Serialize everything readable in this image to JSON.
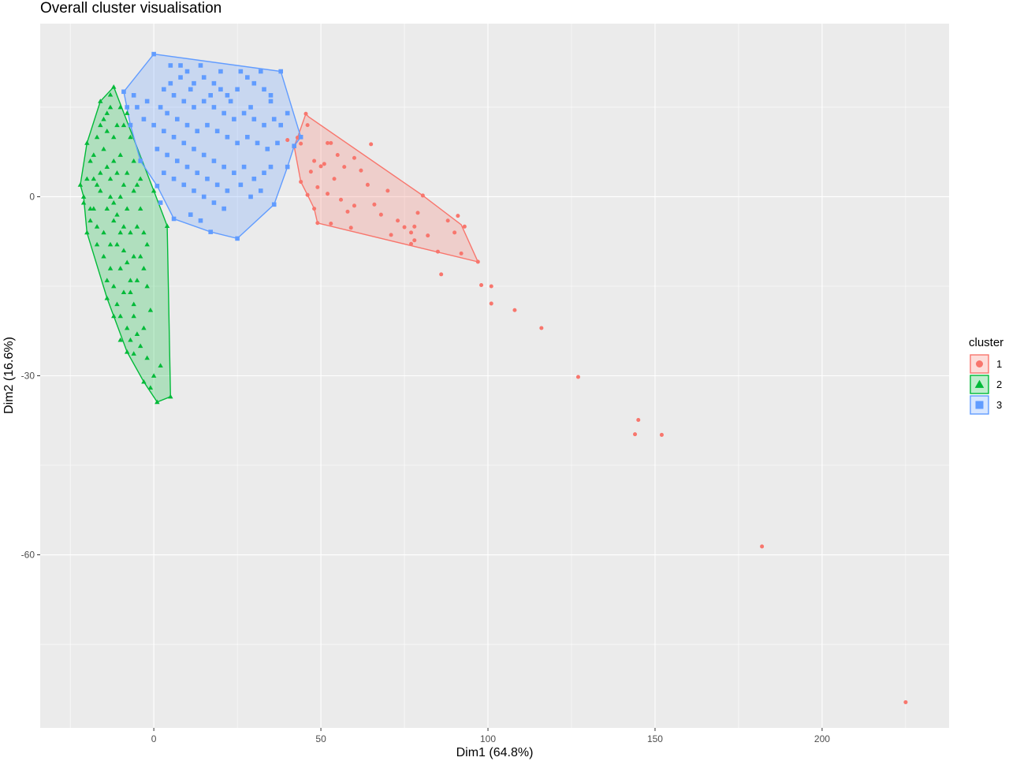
{
  "chart_data": {
    "type": "scatter",
    "title": "Overall cluster visualisation",
    "xlabel": "Dim1 (64.8%)",
    "ylabel": "Dim2 (16.6%)",
    "xlim": [
      -34,
      238
    ],
    "ylim": [
      -89,
      29
    ],
    "xticks": [
      0,
      50,
      100,
      150,
      200
    ],
    "yticks": [
      0,
      -30,
      -60
    ],
    "grid": true,
    "legend": {
      "title": "cluster",
      "placement": "right"
    },
    "series": [
      {
        "name": "1",
        "color": "#F8766D",
        "shape": "circle",
        "hull": [
          [
            45.5,
            13.9
          ],
          [
            43,
            9.9
          ],
          [
            42,
            8.4
          ],
          [
            44,
            2.5
          ],
          [
            46,
            0.3
          ],
          [
            48,
            -2
          ],
          [
            49,
            -4.4
          ],
          [
            97,
            -10.9
          ],
          [
            92,
            -4.7
          ],
          [
            80.5,
            0.2
          ],
          [
            46.3,
            13.4
          ]
        ],
        "points": [
          [
            45.5,
            13.9
          ],
          [
            46,
            12
          ],
          [
            43,
            9.9
          ],
          [
            42,
            8.4
          ],
          [
            44,
            2.5
          ],
          [
            46,
            0.3
          ],
          [
            48,
            -2
          ],
          [
            49,
            -4.4
          ],
          [
            52,
            9
          ],
          [
            53,
            9
          ],
          [
            48,
            6
          ],
          [
            50,
            5.1
          ],
          [
            47,
            4.2
          ],
          [
            51,
            5.5
          ],
          [
            55,
            7
          ],
          [
            57,
            5
          ],
          [
            54,
            3
          ],
          [
            49,
            1.6
          ],
          [
            52,
            0.5
          ],
          [
            56,
            -0.5
          ],
          [
            60,
            -1.5
          ],
          [
            58,
            -2.5
          ],
          [
            53,
            -4.5
          ],
          [
            59,
            -5.2
          ],
          [
            62,
            4.4
          ],
          [
            64,
            2
          ],
          [
            66,
            -1.3
          ],
          [
            70,
            1
          ],
          [
            68,
            -3
          ],
          [
            73,
            -4
          ],
          [
            71,
            -6.4
          ],
          [
            75,
            -5.1
          ],
          [
            77,
            -6
          ],
          [
            78,
            -7.3
          ],
          [
            78,
            -5
          ],
          [
            77,
            -7.9
          ],
          [
            79,
            -2.7
          ],
          [
            80.5,
            0.2
          ],
          [
            82,
            -6.5
          ],
          [
            85,
            -9.2
          ],
          [
            86,
            -13
          ],
          [
            88,
            -4
          ],
          [
            91,
            -3.2
          ],
          [
            93,
            -5
          ],
          [
            90,
            -6
          ],
          [
            92,
            -9.5
          ],
          [
            97,
            -10.9
          ],
          [
            98,
            -14.8
          ],
          [
            101,
            -15
          ],
          [
            101,
            -17.9
          ],
          [
            108,
            -19
          ],
          [
            116,
            -22
          ],
          [
            127,
            -30.2
          ],
          [
            145,
            -37.4
          ],
          [
            144,
            -39.8
          ],
          [
            152,
            -39.9
          ],
          [
            182,
            -58.6
          ],
          [
            225,
            -84.7
          ],
          [
            60,
            6.5
          ],
          [
            65,
            8.8
          ],
          [
            44,
            8.9
          ],
          [
            40,
            9.5
          ]
        ]
      },
      {
        "name": "2",
        "color": "#00BA38",
        "shape": "triangle",
        "hull": [
          [
            -12,
            18.4
          ],
          [
            -16,
            16
          ],
          [
            -20,
            9
          ],
          [
            -22,
            2
          ],
          [
            -21,
            0
          ],
          [
            -20,
            -6
          ],
          [
            -14,
            -17
          ],
          [
            -8,
            -26
          ],
          [
            -3,
            -31
          ],
          [
            1,
            -34.4
          ],
          [
            5,
            -33.5
          ],
          [
            4,
            -4.9
          ],
          [
            0,
            1
          ]
        ],
        "points": [
          [
            -12,
            18.4
          ],
          [
            -13,
            17.1
          ],
          [
            -16,
            16
          ],
          [
            -20,
            9
          ],
          [
            -22,
            2
          ],
          [
            -21,
            0
          ],
          [
            -20,
            -6
          ],
          [
            -14,
            -17
          ],
          [
            -8,
            -26
          ],
          [
            -3,
            -31
          ],
          [
            1,
            -34.4
          ],
          [
            5,
            -33.5
          ],
          [
            4,
            -4.9
          ],
          [
            0,
            1
          ],
          [
            2,
            -28.3
          ],
          [
            -5,
            -23
          ],
          [
            -6,
            -26.3
          ],
          [
            -15,
            -10
          ],
          [
            -17,
            -8
          ],
          [
            -18,
            3
          ],
          [
            -19,
            6
          ],
          [
            -17,
            10
          ],
          [
            -14,
            14
          ],
          [
            -11,
            12
          ],
          [
            -12,
            6
          ],
          [
            -13,
            0
          ],
          [
            -12,
            -4
          ],
          [
            -11,
            -8
          ],
          [
            -10,
            -12
          ],
          [
            -9,
            -16
          ],
          [
            -10,
            -20
          ],
          [
            -8,
            -22
          ],
          [
            -6,
            -18
          ],
          [
            -5,
            -14
          ],
          [
            -6,
            -10
          ],
          [
            -7,
            -6
          ],
          [
            -8,
            -2
          ],
          [
            -9,
            2
          ],
          [
            -10,
            7
          ],
          [
            -9,
            12
          ],
          [
            -8,
            14
          ],
          [
            -7,
            10
          ],
          [
            -6,
            6
          ],
          [
            -5,
            2
          ],
          [
            -4,
            -2
          ],
          [
            -3,
            -6
          ],
          [
            -4,
            -10
          ],
          [
            -2,
            -15
          ],
          [
            -1,
            -19
          ],
          [
            -3,
            -22
          ],
          [
            -16,
            4
          ],
          [
            -18,
            -2
          ],
          [
            -19,
            -4
          ],
          [
            -15,
            -6
          ],
          [
            -14,
            -2
          ],
          [
            -16,
            1
          ],
          [
            -17,
            -5
          ],
          [
            -13,
            -12
          ],
          [
            -12,
            -15
          ],
          [
            -11,
            -18
          ],
          [
            -13,
            -8
          ],
          [
            -15,
            8
          ],
          [
            -14,
            11
          ],
          [
            -16,
            12
          ],
          [
            -12,
            10
          ],
          [
            -11,
            4
          ],
          [
            -10,
            0
          ],
          [
            -9,
            -5
          ],
          [
            -7,
            -14
          ],
          [
            -6,
            -20
          ],
          [
            -4,
            -25
          ],
          [
            -2,
            -27
          ],
          [
            0,
            -30
          ],
          [
            -1,
            -32
          ],
          [
            -18,
            7
          ],
          [
            -20,
            3
          ],
          [
            -21,
            -1
          ],
          [
            -19,
            -2
          ],
          [
            -17,
            2
          ],
          [
            -14,
            5
          ],
          [
            -13,
            3
          ],
          [
            -12,
            -1
          ],
          [
            -11,
            -3
          ],
          [
            -10,
            -6
          ],
          [
            -9,
            -9
          ],
          [
            -8,
            -11
          ],
          [
            -7,
            -16
          ],
          [
            -5,
            -5
          ],
          [
            -3,
            -12
          ],
          [
            -2,
            -8
          ],
          [
            -4,
            3
          ],
          [
            -6,
            1
          ],
          [
            -8,
            4
          ],
          [
            -10,
            15
          ],
          [
            -13,
            15
          ],
          [
            -15,
            13
          ],
          [
            -14,
            -14
          ],
          [
            -12,
            -20
          ],
          [
            -10,
            -24
          ],
          [
            -7,
            -24
          ]
        ]
      },
      {
        "name": "3",
        "color": "#619CFF",
        "shape": "square",
        "hull": [
          [
            0,
            23.9
          ],
          [
            38,
            21
          ],
          [
            44,
            10
          ],
          [
            42,
            8.5
          ],
          [
            40,
            5
          ],
          [
            36,
            -1.3
          ],
          [
            25,
            -7
          ],
          [
            17,
            -5.9
          ],
          [
            6,
            -3.7
          ],
          [
            1,
            1.8
          ],
          [
            -4,
            6
          ],
          [
            -7,
            12
          ],
          [
            -9,
            17.6
          ]
        ],
        "points": [
          [
            0,
            23.9
          ],
          [
            38,
            21
          ],
          [
            44,
            10
          ],
          [
            42,
            8.5
          ],
          [
            40,
            5
          ],
          [
            36,
            -1.3
          ],
          [
            25,
            -7
          ],
          [
            17,
            -5.9
          ],
          [
            6,
            -3.7
          ],
          [
            1,
            1.8
          ],
          [
            -4,
            6
          ],
          [
            -7,
            12
          ],
          [
            -9,
            17.6
          ],
          [
            5,
            22
          ],
          [
            8,
            20
          ],
          [
            10,
            21
          ],
          [
            12,
            19
          ],
          [
            15,
            20
          ],
          [
            18,
            19
          ],
          [
            20,
            18
          ],
          [
            22,
            17
          ],
          [
            25,
            18
          ],
          [
            28,
            20
          ],
          [
            30,
            19
          ],
          [
            33,
            18
          ],
          [
            35,
            17
          ],
          [
            3,
            18
          ],
          [
            6,
            17
          ],
          [
            9,
            16
          ],
          [
            12,
            15
          ],
          [
            15,
            16
          ],
          [
            18,
            15
          ],
          [
            21,
            14
          ],
          [
            24,
            13
          ],
          [
            27,
            14
          ],
          [
            30,
            13
          ],
          [
            33,
            12
          ],
          [
            36,
            13
          ],
          [
            38,
            12
          ],
          [
            2,
            15
          ],
          [
            4,
            14
          ],
          [
            7,
            13
          ],
          [
            10,
            12
          ],
          [
            13,
            11
          ],
          [
            16,
            12
          ],
          [
            19,
            11
          ],
          [
            22,
            10
          ],
          [
            25,
            9
          ],
          [
            28,
            10
          ],
          [
            31,
            9
          ],
          [
            34,
            8
          ],
          [
            37,
            9
          ],
          [
            -2,
            16
          ],
          [
            -5,
            15
          ],
          [
            -3,
            13
          ],
          [
            0,
            12
          ],
          [
            3,
            11
          ],
          [
            6,
            10
          ],
          [
            9,
            9
          ],
          [
            12,
            8
          ],
          [
            15,
            7
          ],
          [
            18,
            6
          ],
          [
            21,
            5
          ],
          [
            24,
            4
          ],
          [
            27,
            5
          ],
          [
            30,
            3
          ],
          [
            33,
            4
          ],
          [
            35,
            5
          ],
          [
            1,
            8
          ],
          [
            4,
            7
          ],
          [
            7,
            6
          ],
          [
            10,
            5
          ],
          [
            13,
            4
          ],
          [
            16,
            3
          ],
          [
            19,
            2
          ],
          [
            22,
            1
          ],
          [
            26,
            2
          ],
          [
            29,
            0
          ],
          [
            32,
            1
          ],
          [
            3,
            4
          ],
          [
            6,
            3
          ],
          [
            9,
            2
          ],
          [
            12,
            1
          ],
          [
            15,
            0
          ],
          [
            18,
            -1
          ],
          [
            21,
            -2
          ],
          [
            11,
            -3
          ],
          [
            14,
            -4
          ],
          [
            2,
            -1
          ],
          [
            -6,
            17
          ],
          [
            -8,
            15
          ],
          [
            5,
            19
          ],
          [
            11,
            18
          ],
          [
            17,
            17
          ],
          [
            23,
            16
          ],
          [
            29,
            15
          ],
          [
            35,
            16
          ],
          [
            40,
            14
          ],
          [
            8,
            22
          ],
          [
            14,
            22
          ],
          [
            20,
            21
          ],
          [
            26,
            21
          ],
          [
            32,
            21
          ]
        ]
      }
    ]
  }
}
